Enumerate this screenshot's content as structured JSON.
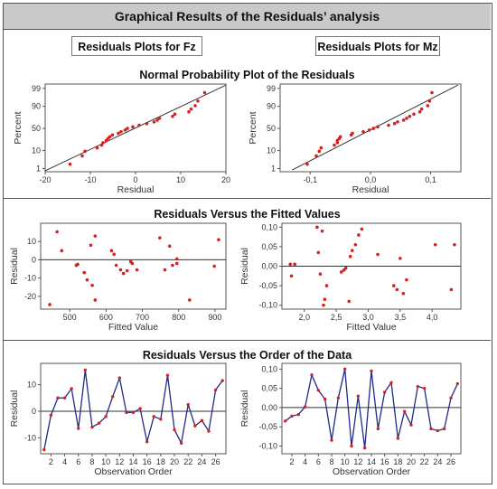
{
  "banner_title": "Graphical Results of the Residuals’ analysis",
  "left_column_title": "Residuals Plots for Fz",
  "right_column_title": "Residuals Plots for Mz",
  "sections": [
    "Normal Probability Plot of the Residuals",
    "Residuals Versus the Fitted Values",
    "Residuals Versus the Order of the Data"
  ],
  "colors": {
    "points": "#d32222",
    "line": "#1f2a8a",
    "reference": "#333333",
    "banner": "#c9c9c9"
  },
  "chart_data": [
    {
      "id": "npp_fz",
      "type": "scatter",
      "section": "Normal Probability Plot of the Residuals",
      "xlabel": "Residual",
      "ylabel": "Percent",
      "xlim": [
        -20,
        20
      ],
      "yscale": "probability",
      "xticks": [
        -20,
        -10,
        0,
        10,
        20
      ],
      "xtick_labels": [
        "-20",
        "-10",
        "0",
        "10",
        "20"
      ],
      "yticks": [
        1,
        10,
        50,
        90,
        99
      ],
      "ytick_labels": [
        "1",
        "10",
        "50",
        "90",
        "99"
      ],
      "reference_line": [
        [
          -20,
          0.7
        ],
        [
          20,
          99.4
        ]
      ],
      "points": [
        [
          -14.5,
          1.9
        ],
        [
          -11.8,
          5.6
        ],
        [
          -11.2,
          9.3
        ],
        [
          -8.5,
          13.0
        ],
        [
          -7.5,
          16.7
        ],
        [
          -7.2,
          20.4
        ],
        [
          -6.5,
          24.1
        ],
        [
          -6.1,
          27.8
        ],
        [
          -5.7,
          31.5
        ],
        [
          -5.1,
          35.2
        ],
        [
          -3.8,
          38.9
        ],
        [
          -3.2,
          42.6
        ],
        [
          -2.3,
          46.3
        ],
        [
          -1.8,
          50.0
        ],
        [
          -0.6,
          53.7
        ],
        [
          0.8,
          57.4
        ],
        [
          2.5,
          61.1
        ],
        [
          4.1,
          64.8
        ],
        [
          4.8,
          68.5
        ],
        [
          5.3,
          72.2
        ],
        [
          8.2,
          75.9
        ],
        [
          8.7,
          79.6
        ],
        [
          11.8,
          83.3
        ],
        [
          12.3,
          87.0
        ],
        [
          13.2,
          90.7
        ],
        [
          13.8,
          94.4
        ],
        [
          15.3,
          98.1
        ]
      ]
    },
    {
      "id": "npp_mz",
      "type": "scatter",
      "section": "Normal Probability Plot of the Residuals",
      "xlabel": "Residual",
      "ylabel": "Percent",
      "xlim": [
        -0.15,
        0.15
      ],
      "yscale": "probability",
      "xticks": [
        -0.1,
        0,
        0.1
      ],
      "xtick_labels": [
        "-0,1",
        "0,0",
        "0,1"
      ],
      "yticks": [
        1,
        10,
        50,
        90,
        99
      ],
      "ytick_labels": [
        "1",
        "10",
        "50",
        "90",
        "99"
      ],
      "reference_line": [
        [
          -0.13,
          0.8
        ],
        [
          0.145,
          99.4
        ]
      ],
      "points": [
        [
          -0.105,
          1.9
        ],
        [
          -0.09,
          5.6
        ],
        [
          -0.085,
          9.3
        ],
        [
          -0.082,
          13.0
        ],
        [
          -0.06,
          16.7
        ],
        [
          -0.055,
          20.4
        ],
        [
          -0.055,
          24.1
        ],
        [
          -0.052,
          27.8
        ],
        [
          -0.05,
          31.5
        ],
        [
          -0.032,
          35.2
        ],
        [
          -0.03,
          38.9
        ],
        [
          -0.012,
          42.6
        ],
        [
          -0.002,
          46.3
        ],
        [
          0.005,
          50.0
        ],
        [
          0.012,
          53.7
        ],
        [
          0.03,
          57.4
        ],
        [
          0.04,
          61.1
        ],
        [
          0.045,
          64.8
        ],
        [
          0.055,
          68.5
        ],
        [
          0.06,
          72.2
        ],
        [
          0.065,
          75.9
        ],
        [
          0.072,
          79.6
        ],
        [
          0.082,
          83.3
        ],
        [
          0.085,
          87.0
        ],
        [
          0.095,
          90.7
        ],
        [
          0.098,
          94.4
        ],
        [
          0.102,
          98.1
        ]
      ]
    },
    {
      "id": "fitted_fz",
      "type": "scatter",
      "section": "Residuals Versus the Fitted Values",
      "xlabel": "Fitted Value",
      "ylabel": "Residual",
      "xlim": [
        420,
        930
      ],
      "ylim": [
        -27,
        20
      ],
      "xticks": [
        500,
        600,
        700,
        800,
        900
      ],
      "xtick_labels": [
        "500",
        "600",
        "700",
        "800",
        "900"
      ],
      "yticks": [
        -20,
        -10,
        0,
        10
      ],
      "ytick_labels": [
        "-20",
        "-10",
        "0",
        "10"
      ],
      "reference_y": 0,
      "points": [
        [
          445,
          -24.5
        ],
        [
          465,
          15.3
        ],
        [
          478,
          5
        ],
        [
          518,
          -3
        ],
        [
          522,
          -2.5
        ],
        [
          540,
          -7
        ],
        [
          548,
          -11
        ],
        [
          558,
          8
        ],
        [
          562,
          -14
        ],
        [
          570,
          13
        ],
        [
          570,
          -22
        ],
        [
          615,
          5
        ],
        [
          622,
          3
        ],
        [
          628,
          -3
        ],
        [
          640,
          -5.5
        ],
        [
          648,
          -7.5
        ],
        [
          658,
          -6
        ],
        [
          668,
          -1
        ],
        [
          672,
          -2
        ],
        [
          685,
          -5.5
        ],
        [
          748,
          12
        ],
        [
          762,
          -5.5
        ],
        [
          775,
          7.5
        ],
        [
          783,
          -3
        ],
        [
          795,
          0.5
        ],
        [
          795,
          -2
        ],
        [
          830,
          -22
        ],
        [
          898,
          -3.5
        ],
        [
          910,
          11
        ]
      ]
    },
    {
      "id": "fitted_mz",
      "type": "scatter",
      "section": "Residuals Versus the Fitted Values",
      "xlabel": "Fitted Value",
      "ylabel": "Residual",
      "xlim": [
        1.65,
        4.45
      ],
      "ylim": [
        -0.11,
        0.11
      ],
      "xticks": [
        2.0,
        2.5,
        3.0,
        3.5,
        4.0
      ],
      "xtick_labels": [
        "2,0",
        "2,5",
        "3,0",
        "3,5",
        "4,0"
      ],
      "yticks": [
        -0.1,
        -0.05,
        0.0,
        0.05,
        0.1
      ],
      "ytick_labels": [
        "-0,10",
        "-0,05",
        "0,00",
        "0,05",
        "0,10"
      ],
      "reference_y": 0,
      "points": [
        [
          1.78,
          0.005
        ],
        [
          1.8,
          -0.025
        ],
        [
          1.85,
          0.005
        ],
        [
          2.2,
          0.1
        ],
        [
          2.22,
          0.035
        ],
        [
          2.25,
          -0.02
        ],
        [
          2.28,
          0.09
        ],
        [
          2.3,
          -0.1
        ],
        [
          2.32,
          -0.085
        ],
        [
          2.35,
          -0.05
        ],
        [
          2.58,
          -0.015
        ],
        [
          2.62,
          -0.01
        ],
        [
          2.65,
          -0.005
        ],
        [
          2.7,
          -0.09
        ],
        [
          2.72,
          0.025
        ],
        [
          2.75,
          0.04
        ],
        [
          2.8,
          0.055
        ],
        [
          2.85,
          0.08
        ],
        [
          2.9,
          0.095
        ],
        [
          3.15,
          0.03
        ],
        [
          3.4,
          -0.05
        ],
        [
          3.45,
          -0.06
        ],
        [
          3.5,
          0.02
        ],
        [
          3.55,
          -0.07
        ],
        [
          3.6,
          -0.035
        ],
        [
          4.05,
          0.055
        ],
        [
          4.3,
          -0.06
        ],
        [
          4.35,
          0.055
        ]
      ]
    },
    {
      "id": "order_fz",
      "type": "line",
      "section": "Residuals Versus the Order of the Data",
      "xlabel": "Observation Order",
      "ylabel": "Residual",
      "xlim": [
        0.5,
        27.5
      ],
      "ylim": [
        -16,
        18
      ],
      "xticks": [
        2,
        4,
        6,
        8,
        10,
        12,
        14,
        16,
        18,
        20,
        22,
        24,
        26
      ],
      "xtick_labels": [
        "2",
        "4",
        "6",
        "8",
        "10",
        "12",
        "14",
        "16",
        "18",
        "20",
        "22",
        "24",
        "26"
      ],
      "yticks": [
        -10,
        0,
        10
      ],
      "ytick_labels": [
        "-10",
        "0",
        "10"
      ],
      "reference_y": 0,
      "x": [
        1,
        2,
        3,
        4,
        5,
        6,
        7,
        8,
        9,
        10,
        11,
        12,
        13,
        14,
        15,
        16,
        17,
        18,
        19,
        20,
        21,
        22,
        23,
        24,
        25,
        26,
        27
      ],
      "values": [
        -14.5,
        -1.5,
        5,
        5,
        8.5,
        -6.5,
        15.5,
        -6,
        -4.5,
        -2,
        5.5,
        12.5,
        -0.5,
        -0.5,
        1,
        -11.5,
        -2,
        -3,
        13.5,
        -7,
        -12,
        2.5,
        -5.5,
        -3.5,
        -7.5,
        8,
        11.5
      ]
    },
    {
      "id": "order_mz",
      "type": "line",
      "section": "Residuals Versus the Order of the Data",
      "xlabel": "Observation Order",
      "ylabel": "Residual",
      "xlim": [
        0.5,
        27.5
      ],
      "ylim": [
        -0.12,
        0.115
      ],
      "xticks": [
        2,
        4,
        6,
        8,
        10,
        12,
        14,
        16,
        18,
        20,
        22,
        24,
        26
      ],
      "xtick_labels": [
        "2",
        "4",
        "6",
        "8",
        "10",
        "12",
        "14",
        "16",
        "18",
        "20",
        "22",
        "24",
        "26"
      ],
      "yticks": [
        -0.1,
        -0.05,
        0.0,
        0.05,
        0.1
      ],
      "ytick_labels": [
        "-0,10",
        "-0,05",
        "0,00",
        "0,05",
        "0,10"
      ],
      "reference_y": 0,
      "x": [
        1,
        2,
        3,
        4,
        5,
        6,
        7,
        8,
        9,
        10,
        11,
        12,
        13,
        14,
        15,
        16,
        17,
        18,
        19,
        20,
        21,
        22,
        23,
        24,
        25,
        26,
        27
      ],
      "values": [
        -0.035,
        -0.022,
        -0.018,
        0.002,
        0.085,
        0.045,
        0.022,
        -0.085,
        0.025,
        0.1,
        -0.1,
        0.03,
        -0.105,
        0.095,
        -0.055,
        0.04,
        0.065,
        -0.08,
        -0.01,
        -0.045,
        0.055,
        0.05,
        -0.055,
        -0.06,
        -0.055,
        0.025,
        0.062
      ]
    }
  ]
}
